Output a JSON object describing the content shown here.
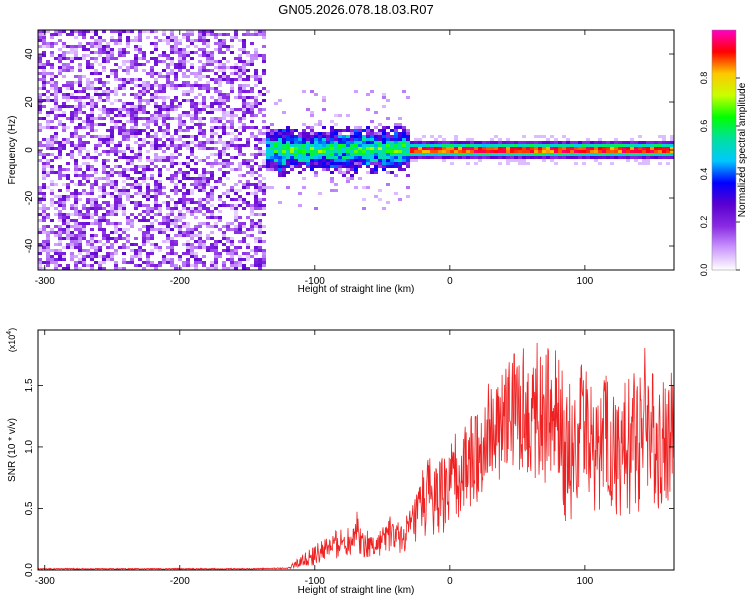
{
  "figure_title": "GN05.2026.078.18.03.R07",
  "chart_data": [
    {
      "type": "heatmap",
      "title": "GN05.2026.078.18.03.R07",
      "xlabel": "Height of straight line (km)",
      "ylabel": "Frequency (Hz)",
      "xlim": [
        -305,
        166
      ],
      "ylim": [
        -50,
        50
      ],
      "x_ticks": [
        -300,
        -200,
        -100,
        0,
        100
      ],
      "x_tick_labels": [
        "-300",
        "-200",
        "-100",
        "0",
        "100"
      ],
      "y_ticks": [
        -40,
        -20,
        0,
        20,
        40
      ],
      "y_tick_labels": [
        "-40",
        "-20",
        "0",
        "20",
        "40"
      ],
      "colorbar": {
        "label": "Normalized spectral amplitude",
        "range": [
          0,
          1
        ],
        "ticks": [
          0.0,
          0.2,
          0.4,
          0.6,
          0.8
        ],
        "tick_labels": [
          "0.0",
          "0.2",
          "0.4",
          "0.6",
          "0.8"
        ],
        "colors": [
          "#ffffff",
          "#cc99ff",
          "#8a2be2",
          "#5a00d0",
          "#0000ff",
          "#00c8ff",
          "#00e0a0",
          "#00ff00",
          "#c8ff00",
          "#ffc800",
          "#ff0000",
          "#ff00c8"
        ]
      },
      "regions": [
        {
          "x_range": [
            -305,
            -137
          ],
          "description": "noise",
          "freq_range": [
            -50,
            50
          ],
          "level": 0.15
        },
        {
          "x_range": [
            -137,
            -30
          ],
          "description": "broadband echo",
          "freq_range": [
            -10,
            10
          ],
          "level": 0.5
        },
        {
          "x_range": [
            -30,
            166
          ],
          "description": "narrow band",
          "freq_center": 0,
          "freq_halfwidth": 3,
          "level": 0.9
        }
      ]
    },
    {
      "type": "line",
      "xlabel": "Height of straight line (km)",
      "ylabel": "SNR (10 * v/v)",
      "multiplier_label": "(x10",
      "multiplier_exponent": "4",
      "multiplier_close": ")",
      "xlim": [
        -305,
        166
      ],
      "ylim": [
        0,
        1.95
      ],
      "x_ticks": [
        -300,
        -200,
        -100,
        0,
        100
      ],
      "x_tick_labels": [
        "-300",
        "-200",
        "-100",
        "0",
        "100"
      ],
      "y_ticks": [
        0.0,
        0.5,
        1.0,
        1.5
      ],
      "y_tick_labels": [
        "0.0",
        "0.5",
        "1.0",
        "1.5"
      ],
      "color": "#ee2222",
      "series": [
        {
          "name": "SNR",
          "x": [
            -305,
            -260,
            -200,
            -150,
            -120,
            -112,
            -100,
            -90,
            -75,
            -70,
            -65,
            -55,
            -45,
            -35,
            -25,
            -18,
            -10,
            0,
            5,
            10,
            20,
            25,
            30,
            35,
            40,
            50,
            55,
            60,
            65,
            70,
            75,
            80,
            85,
            90,
            95,
            100,
            105,
            110,
            115,
            120,
            125,
            130,
            135,
            140,
            145,
            150,
            155,
            160,
            166
          ],
          "y": [
            0.01,
            0.01,
            0.01,
            0.01,
            0.015,
            0.06,
            0.12,
            0.18,
            0.25,
            0.35,
            0.22,
            0.2,
            0.3,
            0.25,
            0.4,
            0.6,
            0.55,
            0.65,
            0.75,
            0.8,
            0.95,
            1.05,
            1.15,
            1.1,
            1.2,
            1.35,
            1.3,
            1.25,
            1.4,
            1.2,
            1.3,
            1.2,
            1.0,
            0.95,
            1.1,
            1.3,
            1.0,
            0.95,
            1.1,
            1.0,
            0.9,
            0.95,
            1.05,
            1.2,
            1.25,
            1.1,
            1.0,
            1.05,
            1.1
          ],
          "amplitude": [
            0.004,
            0.004,
            0.004,
            0.004,
            0.004,
            0.04,
            0.08,
            0.1,
            0.14,
            0.2,
            0.12,
            0.1,
            0.15,
            0.12,
            0.22,
            0.35,
            0.3,
            0.35,
            0.4,
            0.4,
            0.4,
            0.4,
            0.4,
            0.4,
            0.45,
            0.55,
            0.55,
            0.6,
            0.6,
            0.55,
            0.55,
            0.55,
            0.6,
            0.6,
            0.5,
            0.5,
            0.55,
            0.55,
            0.55,
            0.55,
            0.6,
            0.6,
            0.6,
            0.75,
            0.6,
            0.55,
            0.55,
            0.55,
            0.55
          ]
        }
      ]
    }
  ]
}
